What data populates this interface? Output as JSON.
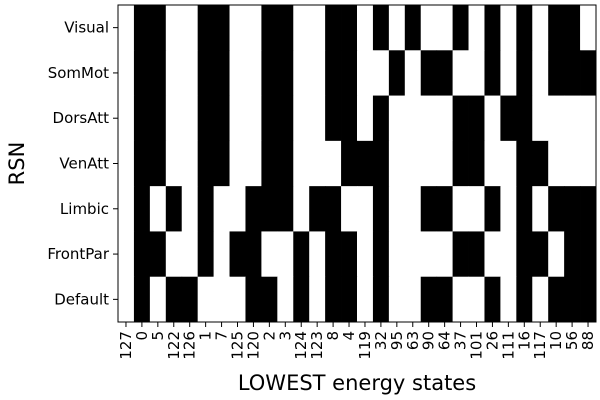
{
  "chart_data": {
    "type": "heatmap",
    "title": "",
    "xlabel": "LOWEST energy states",
    "ylabel": "RSN",
    "rows": [
      "Visual",
      "SomMot",
      "DorsAtt",
      "VenAtt",
      "Limbic",
      "FrontPar",
      "Default"
    ],
    "columns": [
      "127",
      "0",
      "5",
      "122",
      "126",
      "1",
      "7",
      "125",
      "120",
      "2",
      "3",
      "124",
      "123",
      "8",
      "4",
      "119",
      "32",
      "95",
      "63",
      "90",
      "64",
      "37",
      "101",
      "26",
      "111",
      "16",
      "117",
      "10",
      "56",
      "88"
    ],
    "colors": {
      "active": "#000000",
      "inactive": "#ffffff"
    },
    "legend": "none",
    "grid": false,
    "values": [
      [
        0,
        1,
        1,
        0,
        0,
        1,
        1,
        0,
        0,
        1,
        1,
        0,
        0,
        1,
        1,
        0,
        1,
        0,
        1,
        0,
        0,
        1,
        0,
        1,
        0,
        1,
        0,
        1,
        1,
        0
      ],
      [
        0,
        1,
        1,
        0,
        0,
        1,
        1,
        0,
        0,
        1,
        1,
        0,
        0,
        1,
        1,
        0,
        0,
        1,
        0,
        1,
        1,
        0,
        0,
        1,
        0,
        1,
        0,
        1,
        1,
        1
      ],
      [
        0,
        1,
        1,
        0,
        0,
        1,
        1,
        0,
        0,
        1,
        1,
        0,
        0,
        1,
        1,
        0,
        1,
        0,
        0,
        0,
        0,
        1,
        1,
        0,
        1,
        1,
        0,
        0,
        0,
        0
      ],
      [
        0,
        1,
        1,
        0,
        0,
        1,
        1,
        0,
        0,
        1,
        1,
        0,
        0,
        0,
        1,
        1,
        1,
        0,
        0,
        0,
        0,
        1,
        1,
        0,
        0,
        1,
        1,
        0,
        0,
        0
      ],
      [
        0,
        1,
        0,
        1,
        0,
        1,
        0,
        0,
        1,
        1,
        1,
        0,
        1,
        1,
        0,
        0,
        1,
        0,
        0,
        1,
        1,
        0,
        0,
        1,
        0,
        1,
        0,
        1,
        1,
        1
      ],
      [
        0,
        1,
        1,
        0,
        0,
        1,
        0,
        1,
        1,
        0,
        0,
        1,
        0,
        1,
        1,
        0,
        1,
        0,
        0,
        0,
        0,
        1,
        1,
        0,
        0,
        1,
        1,
        0,
        1,
        1
      ],
      [
        0,
        1,
        0,
        1,
        1,
        0,
        0,
        0,
        1,
        1,
        0,
        1,
        0,
        1,
        1,
        0,
        1,
        0,
        0,
        1,
        1,
        0,
        0,
        1,
        0,
        1,
        0,
        1,
        1,
        1
      ]
    ]
  }
}
